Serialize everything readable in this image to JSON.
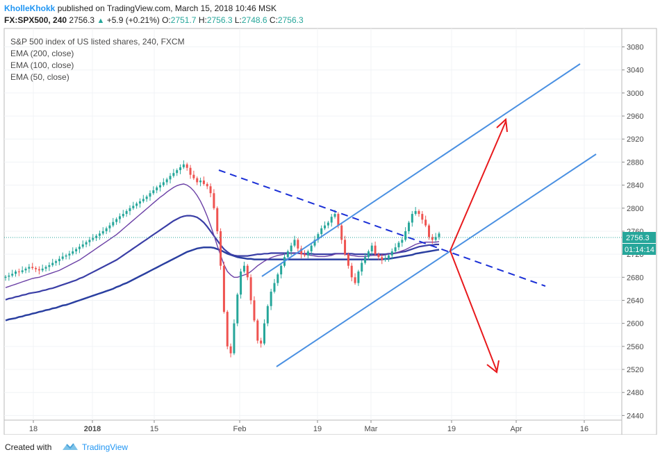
{
  "header": {
    "author": "KholleKhokk",
    "published_text": "published on TradingView.com, March 15, 2018 10:46 MSK",
    "symbol": "FX:SPX500, 240",
    "last": "2756.3",
    "change": "+5.9 (+0.21%)",
    "o_label": "O:",
    "o_val": "2751.7",
    "h_label": "H:",
    "h_val": "2756.3",
    "l_label": "L:",
    "l_val": "2748.6",
    "c_label": "C:",
    "c_val": "2756.3"
  },
  "legend": {
    "title": "S&P 500 index of US listed shares, 240, FXCM",
    "ema200": "EMA (200, close)",
    "ema100": "EMA (100, close)",
    "ema50": "EMA (50, close)"
  },
  "footer": {
    "created_with": "Created with",
    "brand": "TradingView"
  },
  "colors": {
    "channel": "#4a90e2",
    "trend_dash": "#1a2fd6",
    "arrow": "#e8191c",
    "ema200": "#2a3fa0",
    "ema100": "#3a3ea6",
    "ema50": "#6a3fa5",
    "up": "#26a69a",
    "down": "#ef5350",
    "price_tag": "#26a69a"
  },
  "chart_data": {
    "type": "candlestick",
    "y_ticks": [
      2440,
      2480,
      2520,
      2560,
      2600,
      2640,
      2680,
      2720,
      2760,
      2800,
      2840,
      2880,
      2920,
      2960,
      3000,
      3040,
      3080
    ],
    "ylim": [
      2432,
      3112
    ],
    "x_ticks": [
      "18",
      "2018",
      "15",
      "Feb",
      "19",
      "Mar",
      "19",
      "Apr",
      "16"
    ],
    "last_price_label": "2756.3",
    "countdown_label": "01:14:14",
    "closes": [
      2681,
      2683,
      2686,
      2690,
      2689,
      2692,
      2695,
      2698,
      2696,
      2694,
      2692,
      2695,
      2698,
      2701,
      2705,
      2708,
      2712,
      2716,
      2718,
      2721,
      2725,
      2729,
      2733,
      2737,
      2741,
      2745,
      2748,
      2752,
      2756,
      2760,
      2765,
      2770,
      2776,
      2781,
      2786,
      2790,
      2795,
      2800,
      2804,
      2808,
      2812,
      2816,
      2820,
      2826,
      2831,
      2836,
      2840,
      2845,
      2850,
      2856,
      2861,
      2866,
      2871,
      2876,
      2870,
      2858,
      2852,
      2845,
      2848,
      2842,
      2838,
      2826,
      2800,
      2760,
      2700,
      2620,
      2560,
      2548,
      2600,
      2650,
      2690,
      2700,
      2680,
      2640,
      2605,
      2570,
      2565,
      2600,
      2630,
      2655,
      2670,
      2685,
      2700,
      2715,
      2725,
      2735,
      2745,
      2730,
      2720,
      2718,
      2725,
      2735,
      2745,
      2755,
      2765,
      2770,
      2775,
      2785,
      2790,
      2770,
      2745,
      2720,
      2700,
      2680,
      2670,
      2690,
      2705,
      2715,
      2725,
      2735,
      2720,
      2715,
      2710,
      2712,
      2718,
      2725,
      2732,
      2740,
      2745,
      2760,
      2775,
      2790,
      2795,
      2790,
      2780,
      2770,
      2750,
      2745,
      2750,
      2756
    ],
    "ema50": [
      2662,
      2664,
      2666,
      2668,
      2670,
      2672,
      2674,
      2676,
      2678,
      2679,
      2680,
      2682,
      2684,
      2686,
      2688,
      2690,
      2692,
      2695,
      2698,
      2701,
      2704,
      2707,
      2710,
      2714,
      2718,
      2722,
      2726,
      2730,
      2734,
      2738,
      2742,
      2746,
      2750,
      2754,
      2759,
      2764,
      2769,
      2774,
      2779,
      2784,
      2789,
      2794,
      2799,
      2804,
      2809,
      2814,
      2819,
      2823,
      2828,
      2832,
      2836,
      2839,
      2841,
      2842,
      2840,
      2836,
      2830,
      2822,
      2812,
      2800,
      2786,
      2770,
      2753,
      2735,
      2718,
      2702,
      2690,
      2684,
      2680,
      2680,
      2682,
      2684,
      2686,
      2690,
      2695,
      2700,
      2704,
      2708,
      2711,
      2714,
      2716,
      2718,
      2719,
      2720,
      2721,
      2722,
      2722,
      2722,
      2721,
      2720,
      2719,
      2718,
      2717,
      2716,
      2716,
      2716,
      2717,
      2718,
      2720,
      2721,
      2721,
      2720,
      2719,
      2718,
      2717,
      2716,
      2716,
      2716,
      2717,
      2718,
      2718,
      2718,
      2718,
      2719,
      2720,
      2721,
      2722,
      2724,
      2726,
      2728,
      2731,
      2734,
      2737,
      2739,
      2740,
      2741,
      2741,
      2741,
      2741,
      2742
    ],
    "ema100": [
      2641,
      2643,
      2644,
      2646,
      2647,
      2649,
      2650,
      2652,
      2653,
      2654,
      2655,
      2657,
      2658,
      2660,
      2661,
      2663,
      2665,
      2667,
      2669,
      2671,
      2673,
      2675,
      2678,
      2680,
      2683,
      2686,
      2689,
      2692,
      2695,
      2698,
      2701,
      2704,
      2707,
      2710,
      2714,
      2718,
      2722,
      2726,
      2730,
      2734,
      2738,
      2742,
      2746,
      2750,
      2754,
      2758,
      2762,
      2766,
      2770,
      2774,
      2778,
      2781,
      2784,
      2786,
      2787,
      2787,
      2786,
      2784,
      2780,
      2775,
      2768,
      2760,
      2752,
      2744,
      2736,
      2729,
      2724,
      2720,
      2718,
      2717,
      2717,
      2717,
      2717,
      2718,
      2719,
      2720,
      2720,
      2721,
      2721,
      2722,
      2722,
      2722,
      2722,
      2722,
      2722,
      2722,
      2722,
      2722,
      2721,
      2721,
      2721,
      2721,
      2720,
      2720,
      2720,
      2720,
      2720,
      2720,
      2721,
      2721,
      2721,
      2721,
      2721,
      2721,
      2720,
      2720,
      2720,
      2720,
      2720,
      2720,
      2720,
      2720,
      2720,
      2720,
      2721,
      2721,
      2722,
      2723,
      2724,
      2725,
      2727,
      2729,
      2731,
      2733,
      2734,
      2735,
      2736,
      2736,
      2737,
      2737
    ],
    "ema200": [
      2605,
      2607,
      2608,
      2609,
      2611,
      2612,
      2614,
      2615,
      2617,
      2618,
      2620,
      2621,
      2623,
      2624,
      2626,
      2627,
      2629,
      2631,
      2632,
      2634,
      2636,
      2638,
      2640,
      2642,
      2644,
      2646,
      2648,
      2650,
      2652,
      2654,
      2656,
      2658,
      2660,
      2663,
      2665,
      2668,
      2670,
      2673,
      2676,
      2679,
      2682,
      2685,
      2688,
      2691,
      2694,
      2697,
      2700,
      2703,
      2706,
      2709,
      2712,
      2715,
      2718,
      2721,
      2724,
      2726,
      2728,
      2730,
      2731,
      2732,
      2732,
      2732,
      2731,
      2729,
      2727,
      2724,
      2721,
      2719,
      2717,
      2715,
      2714,
      2713,
      2712,
      2712,
      2711,
      2711,
      2711,
      2711,
      2711,
      2711,
      2711,
      2711,
      2711,
      2711,
      2711,
      2711,
      2711,
      2711,
      2711,
      2711,
      2711,
      2711,
      2711,
      2711,
      2711,
      2711,
      2711,
      2711,
      2711,
      2711,
      2711,
      2711,
      2711,
      2711,
      2711,
      2711,
      2711,
      2711,
      2711,
      2711,
      2711,
      2711,
      2711,
      2712,
      2712,
      2713,
      2714,
      2715,
      2716,
      2717,
      2718,
      2719,
      2721,
      2722,
      2723,
      2724,
      2725,
      2726,
      2727,
      2728
    ]
  }
}
